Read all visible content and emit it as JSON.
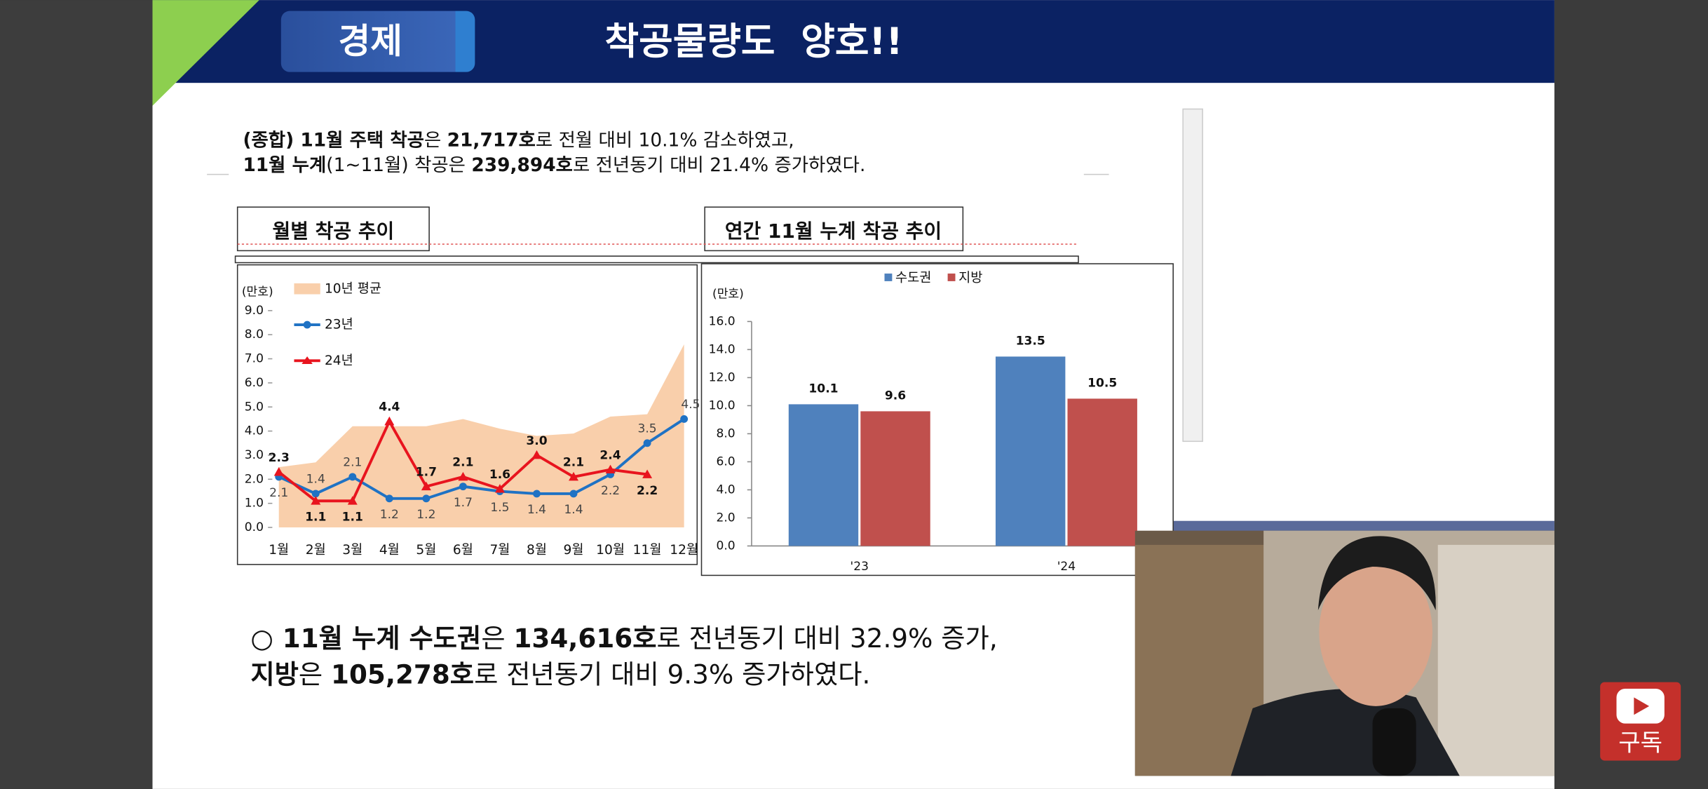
{
  "header": {
    "category": "경제",
    "title": "착공물량도  양호!!"
  },
  "summary": [
    [
      "(종합) 11월 주택 착공",
      "은 ",
      "21,717호",
      "로 전월 대비 10.1% 감소하였고,"
    ],
    [
      "11월 누계",
      "(1~11월) 착공은 ",
      "239,894호",
      "로 전년동기 대비 21.4% 증가하였다."
    ]
  ],
  "chart_data": [
    {
      "type": "line",
      "title": "월별 착공 추이",
      "unit_label": "(만호)",
      "categories": [
        "1월",
        "2월",
        "3월",
        "4월",
        "5월",
        "6월",
        "7월",
        "8월",
        "9월",
        "10월",
        "11월",
        "12월"
      ],
      "ylim": [
        0,
        9
      ],
      "yticks": [
        {
          "value": 0,
          "label": "0.0"
        },
        {
          "value": 1,
          "label": "1.0"
        },
        {
          "value": 2,
          "label": "2.0"
        },
        {
          "value": 3,
          "label": "3.0"
        },
        {
          "value": 4,
          "label": "4.0"
        },
        {
          "value": 5,
          "label": "5.0"
        },
        {
          "value": 6,
          "label": "6.0"
        },
        {
          "value": 7,
          "label": "7.0"
        },
        {
          "value": 8,
          "label": "8.0"
        },
        {
          "value": 9,
          "label": "9.0"
        }
      ],
      "series": [
        {
          "name": "10년 평균",
          "style": "area",
          "color": "#f9cfab",
          "values": [
            2.5,
            2.7,
            4.2,
            4.2,
            4.2,
            4.5,
            4.1,
            3.8,
            3.9,
            4.6,
            4.7,
            7.6
          ]
        },
        {
          "name": "23년",
          "style": "line",
          "marker": "circle",
          "color": "#1f72c4",
          "values": [
            2.1,
            1.4,
            2.1,
            1.2,
            1.2,
            1.7,
            1.5,
            1.4,
            1.4,
            2.2,
            3.5,
            4.5
          ],
          "value_labels": [
            "2.1",
            "1.4",
            "2.1",
            "1.2",
            "1.2",
            "1.7",
            "1.5",
            "1.4",
            "1.4",
            "2.2",
            "3.5",
            "4.5"
          ]
        },
        {
          "name": "24년",
          "style": "line",
          "marker": "triangle",
          "color": "#e8141e",
          "values": [
            2.3,
            1.1,
            1.1,
            4.4,
            1.7,
            2.1,
            1.6,
            3.0,
            2.1,
            2.4,
            2.2,
            null
          ],
          "value_labels": [
            "2.3",
            "1.1",
            "1.1",
            "4.4",
            "1.7",
            "2.1",
            "1.6",
            "3.0",
            "2.1",
            "2.4",
            "2.2",
            null
          ]
        }
      ]
    },
    {
      "type": "bar",
      "title": "연간 11월 누계 착공 추이",
      "unit_label": "(만호)",
      "categories": [
        "'23",
        "'24"
      ],
      "ylim": [
        0,
        16
      ],
      "yticks": [
        {
          "value": 0,
          "label": "0.0"
        },
        {
          "value": 2,
          "label": "2.0"
        },
        {
          "value": 4,
          "label": "4.0"
        },
        {
          "value": 6,
          "label": "6.0"
        },
        {
          "value": 8,
          "label": "8.0"
        },
        {
          "value": 10,
          "label": "10.0"
        },
        {
          "value": 12,
          "label": "12.0"
        },
        {
          "value": 14,
          "label": "14.0"
        },
        {
          "value": 16,
          "label": "16.0"
        }
      ],
      "series": [
        {
          "name": "수도권",
          "color": "#4f81bd",
          "values": [
            10.1,
            13.5
          ]
        },
        {
          "name": "지방",
          "color": "#c0504d",
          "values": [
            9.6,
            10.5
          ]
        }
      ]
    }
  ],
  "detail": [
    [
      "○ 11월 누계 수도권",
      "은 ",
      "134,616호",
      "로 전년동기 대비 32.9% 증가,"
    ],
    [
      "지방",
      "은 ",
      "105,278호",
      "로 전년동기 대비 9.3% 증가하였다."
    ]
  ],
  "subscribe": "구독"
}
